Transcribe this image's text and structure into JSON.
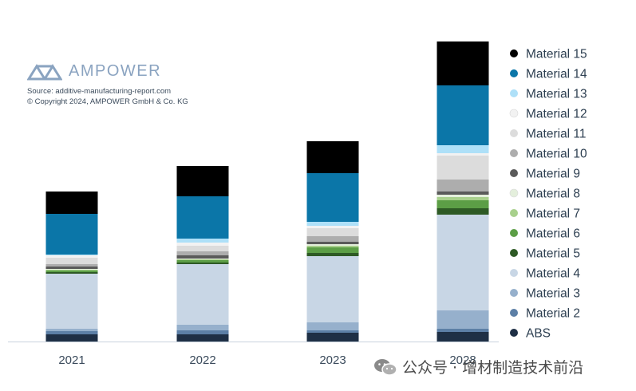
{
  "brand": {
    "name": "AMPOWER",
    "source": "Source: additive-manufacturing-report.com",
    "copyright": "© Copyright 2024, AMPOWER GmbH & Co. KG"
  },
  "watermark": {
    "text": "公众号 · 增材制造技术前沿"
  },
  "chart_data": {
    "type": "bar",
    "stacked": true,
    "title": "",
    "xlabel": "",
    "ylabel": "",
    "yaxis_visible": false,
    "ylim": [
      0,
      375
    ],
    "grid": false,
    "legend_position": "right",
    "categories": [
      "2021",
      "2022",
      "2023",
      "2028"
    ],
    "series": [
      {
        "name": "ABS",
        "color": "#1e2f45",
        "values": [
          9,
          9,
          11,
          12
        ]
      },
      {
        "name": "Material 2",
        "color": "#5c7fa6",
        "values": [
          4,
          5,
          3,
          4
        ]
      },
      {
        "name": "Material 3",
        "color": "#96b0cc",
        "values": [
          3,
          7,
          10,
          23
        ]
      },
      {
        "name": "Material 4",
        "color": "#c8d6e5",
        "values": [
          69,
          76,
          83,
          120
        ]
      },
      {
        "name": "Material 5",
        "color": "#2e5a25",
        "values": [
          2,
          2,
          4,
          8
        ]
      },
      {
        "name": "Material 6",
        "color": "#5c9e46",
        "values": [
          2,
          3,
          7,
          10
        ]
      },
      {
        "name": "Material 7",
        "color": "#a8d08c",
        "values": [
          1,
          1,
          2,
          4
        ]
      },
      {
        "name": "Material 8",
        "color": "#e4efdc",
        "values": [
          1,
          1,
          2,
          3
        ]
      },
      {
        "name": "Material 9",
        "color": "#5a5a5a",
        "values": [
          3,
          4,
          3,
          4
        ]
      },
      {
        "name": "Material 10",
        "color": "#adadad",
        "values": [
          3,
          5,
          7,
          15
        ]
      },
      {
        "name": "Material 11",
        "color": "#dcdcdc",
        "values": [
          8,
          7,
          10,
          30
        ]
      },
      {
        "name": "Material 12",
        "color": "#f2f2f2",
        "values": [
          3,
          4,
          3,
          3
        ]
      },
      {
        "name": "Material 13",
        "color": "#aee0f8",
        "values": [
          1,
          5,
          5,
          10
        ]
      },
      {
        "name": "Material 14",
        "color": "#0b76a8",
        "values": [
          51,
          53,
          61,
          75
        ]
      },
      {
        "name": "Material 15",
        "color": "#000000",
        "values": [
          28,
          38,
          40,
          55
        ]
      }
    ]
  }
}
